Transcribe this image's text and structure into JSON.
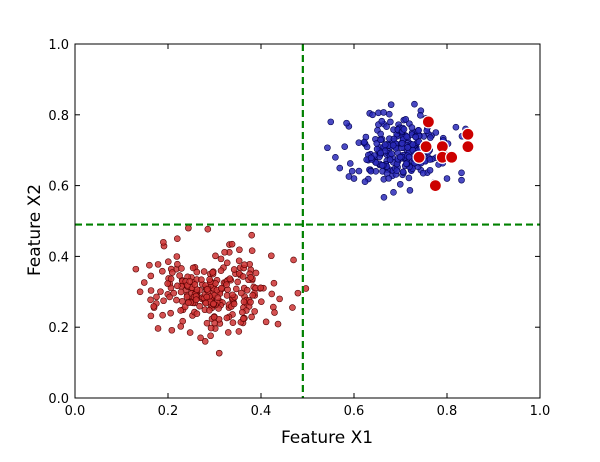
{
  "chart_data": {
    "type": "scatter",
    "title": "",
    "xlabel": "Feature X1",
    "ylabel": "Feature X2",
    "xlim": [
      0.0,
      1.0
    ],
    "ylim": [
      0.0,
      1.0
    ],
    "xticks": [
      "0.0",
      "0.2",
      "0.4",
      "0.6",
      "0.8",
      "1.0"
    ],
    "yticks": [
      "0.0",
      "0.2",
      "0.4",
      "0.6",
      "0.8",
      "1.0"
    ],
    "grid": false,
    "legend": "none",
    "decision_lines": {
      "vertical_x": 0.49,
      "horizontal_y": 0.49,
      "color": "#008000",
      "style": "dashed"
    },
    "series": [
      {
        "color": "#cc3333",
        "edge": "#550000",
        "marker": "small",
        "cluster": {
          "center": [
            0.3,
            0.3
          ],
          "spread": [
            0.065,
            0.055
          ],
          "count": 250,
          "seed": 7
        },
        "outliers": [
          [
            0.14,
            0.3
          ],
          [
            0.19,
            0.44
          ],
          [
            0.22,
            0.45
          ],
          [
            0.38,
            0.46
          ],
          [
            0.44,
            0.28
          ],
          [
            0.47,
            0.39
          ],
          [
            0.28,
            0.16
          ],
          [
            0.27,
            0.17
          ]
        ]
      },
      {
        "color": "#2a2ab8",
        "edge": "#000050",
        "marker": "small",
        "cluster": {
          "center": [
            0.69,
            0.7
          ],
          "spread": [
            0.055,
            0.048
          ],
          "count": 250,
          "seed": 13
        },
        "outliers": [
          [
            0.55,
            0.78
          ],
          [
            0.56,
            0.68
          ],
          [
            0.6,
            0.62
          ],
          [
            0.73,
            0.83
          ],
          [
            0.8,
            0.62
          ],
          [
            0.84,
            0.76
          ],
          [
            0.64,
            0.8
          ],
          [
            0.58,
            0.71
          ]
        ]
      },
      {
        "color": "#cc0000",
        "edge": "#ffffff",
        "marker": "large",
        "points": [
          [
            0.76,
            0.78
          ],
          [
            0.755,
            0.71
          ],
          [
            0.74,
            0.68
          ],
          [
            0.79,
            0.71
          ],
          [
            0.79,
            0.68
          ],
          [
            0.81,
            0.68
          ],
          [
            0.845,
            0.745
          ],
          [
            0.845,
            0.71
          ],
          [
            0.775,
            0.6
          ]
        ]
      }
    ]
  }
}
